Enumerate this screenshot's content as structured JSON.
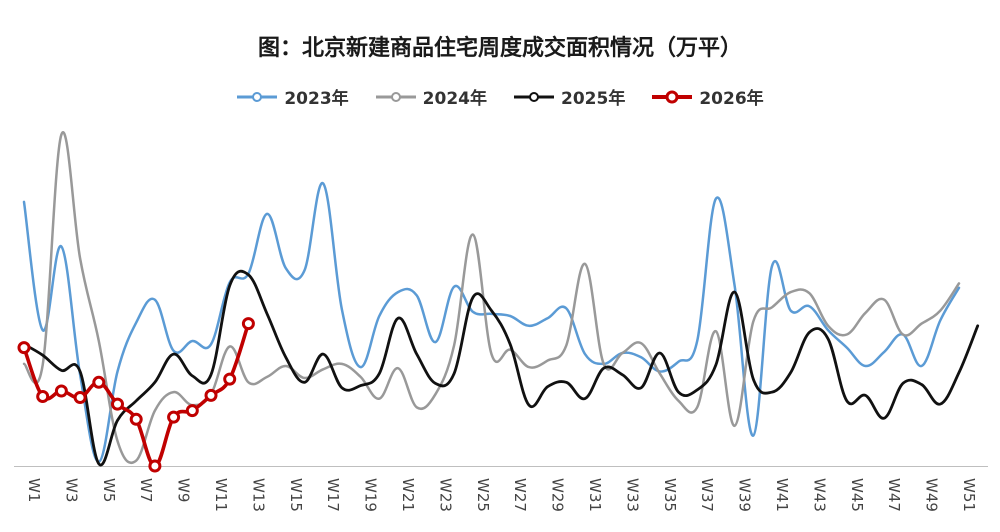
{
  "chart_data": {
    "type": "line",
    "title": "图：北京新建商品住宅周度成交面积情况（万平）",
    "xlabel": "",
    "ylabel": "",
    "ylim": [
      0,
      30
    ],
    "grid": false,
    "legend_position": "top",
    "x_tick_labels": [
      "W1",
      "W3",
      "W5",
      "W7",
      "W9",
      "W11",
      "W13",
      "W15",
      "W17",
      "W19",
      "W21",
      "W23",
      "W25",
      "W27",
      "W29",
      "W31",
      "W33",
      "W35",
      "W37",
      "W39",
      "W41",
      "W43",
      "W45",
      "W47",
      "W49",
      "W51"
    ],
    "series": [
      {
        "name": "2023年",
        "color": "#5b9bd5",
        "values": [
          24.3,
          12.5,
          20.2,
          8.4,
          0.4,
          8.7,
          13.2,
          15.3,
          10.6,
          11.5,
          11.2,
          16.9,
          17.7,
          23.2,
          18.2,
          18.0,
          26.0,
          14.4,
          9.1,
          13.8,
          16.0,
          15.7,
          11.4,
          16.5,
          14.2,
          14.0,
          13.8,
          12.9,
          13.6,
          14.5,
          10.3,
          9.4,
          10.4,
          10.0,
          8.7,
          9.6,
          11.5,
          24.6,
          16.6,
          2.8,
          18.4,
          14.3,
          14.7,
          12.5,
          10.9,
          9.2,
          10.5,
          12.1,
          9.2,
          13.4,
          16.4
        ]
      },
      {
        "name": "2024年",
        "color": "#999999",
        "values": [
          9.4,
          9.3,
          30.5,
          19.1,
          11.5,
          2.3,
          0.5,
          5.1,
          6.8,
          5.6,
          6.6,
          11.0,
          7.7,
          8.2,
          9.2,
          8.1,
          8.9,
          9.4,
          8.2,
          6.2,
          9.0,
          5.4,
          6.6,
          11.1,
          21.3,
          10.3,
          10.7,
          9.1,
          9.7,
          11.1,
          18.6,
          9.4,
          10.4,
          11.3,
          8.5,
          6.0,
          5.4,
          12.4,
          3.7,
          13.3,
          14.6,
          16.0,
          15.9,
          12.9,
          12.1,
          14.1,
          15.3,
          12.1,
          13.1,
          14.3,
          16.8
        ]
      },
      {
        "name": "2025年",
        "color": "#111111",
        "values": [
          11.2,
          10.2,
          8.8,
          8.7,
          0.2,
          4.2,
          6.0,
          7.7,
          10.3,
          8.3,
          8.4,
          16.6,
          17.6,
          14.0,
          10.0,
          7.7,
          10.3,
          7.2,
          7.4,
          8.5,
          13.6,
          10.3,
          7.6,
          8.5,
          15.5,
          14.3,
          11.2,
          5.6,
          7.3,
          7.7,
          6.2,
          9.0,
          8.4,
          7.2,
          10.4,
          6.8,
          7.0,
          9.3,
          16.0,
          8.0,
          6.8,
          8.6,
          12.3,
          11.7,
          6.0,
          6.5,
          4.4,
          7.6,
          7.5,
          5.7,
          8.6,
          12.9
        ]
      },
      {
        "name": "2026年",
        "color": "#c00000",
        "values": [
          10.9,
          6.4,
          6.9,
          6.3,
          7.7,
          5.7,
          4.3,
          0.0,
          4.5,
          5.1,
          6.5,
          8.0,
          13.1
        ]
      }
    ]
  }
}
